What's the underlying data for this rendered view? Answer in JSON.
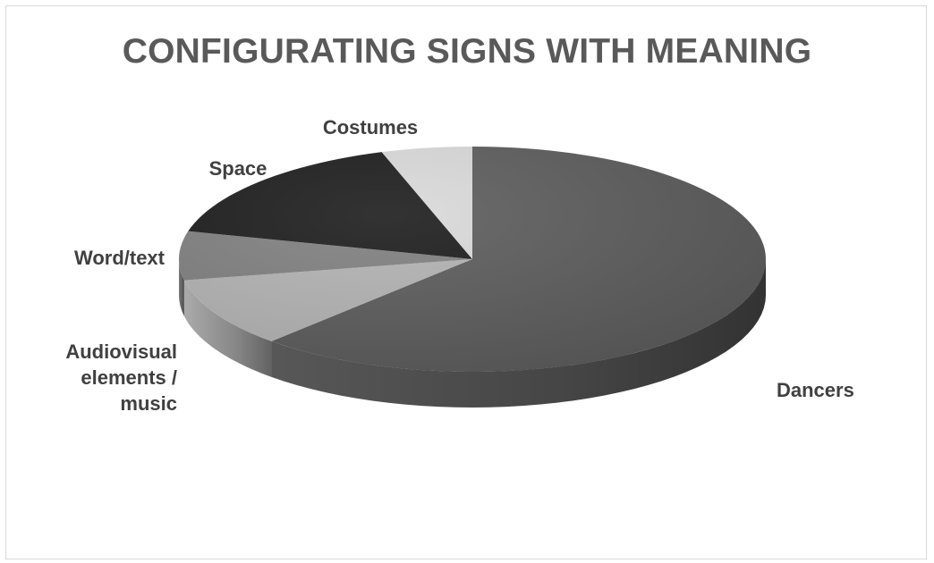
{
  "chart_data": {
    "type": "pie",
    "title": "CONFIGURATING SIGNS WITH MEANING",
    "style": "3d",
    "categories": [
      "Dancers",
      "Audiovisual elements / music",
      "Word/text",
      "Space",
      "Costumes"
    ],
    "values": [
      62,
      10,
      7,
      16,
      5
    ],
    "colors": [
      "#5c5c5c",
      "#b3b3b3",
      "#808080",
      "#1c1c1c",
      "#d9d9d9"
    ],
    "data_labels": "category-name"
  }
}
